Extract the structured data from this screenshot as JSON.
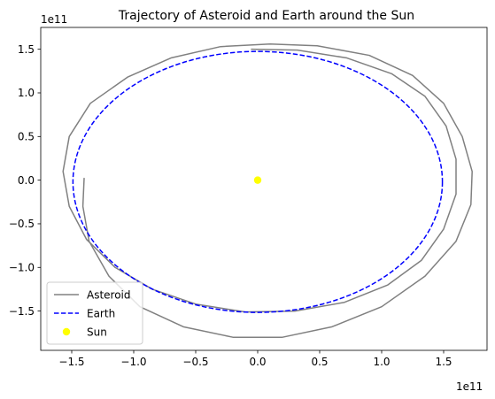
{
  "chart_data": {
    "type": "line",
    "title": "Trajectory of Asteroid and Earth around the Sun",
    "xlabel": "",
    "ylabel": "",
    "x_offset_text": "1e11",
    "y_offset_text": "1e11",
    "xlim": [
      -1.75,
      1.85
    ],
    "ylim": [
      -1.95,
      1.75
    ],
    "xticks": [
      -1.5,
      -1.0,
      -0.5,
      0.0,
      0.5,
      1.0,
      1.5
    ],
    "xtick_labels": [
      "−1.5",
      "−1.0",
      "−0.5",
      "0.0",
      "0.5",
      "1.0",
      "1.5"
    ],
    "yticks": [
      -1.5,
      -1.0,
      -0.5,
      0.0,
      0.5,
      1.0,
      1.5
    ],
    "ytick_labels": [
      "−1.5",
      "−1.0",
      "−0.5",
      "0.0",
      "0.5",
      "1.0",
      "1.5"
    ],
    "grid": false,
    "legend_position": "lower-left",
    "series": [
      {
        "name": "Asteroid",
        "color": "#808080",
        "style": "solid",
        "points": [
          [
            -1.4,
            0.02
          ],
          [
            -1.41,
            -0.3
          ],
          [
            -1.36,
            -0.7
          ],
          [
            -1.2,
            -1.1
          ],
          [
            -0.95,
            -1.45
          ],
          [
            -0.6,
            -1.68
          ],
          [
            -0.2,
            -1.8
          ],
          [
            0.2,
            -1.8
          ],
          [
            0.6,
            -1.68
          ],
          [
            1.0,
            -1.45
          ],
          [
            1.35,
            -1.1
          ],
          [
            1.6,
            -0.7
          ],
          [
            1.72,
            -0.28
          ],
          [
            1.73,
            0.1
          ],
          [
            1.65,
            0.5
          ],
          [
            1.5,
            0.88
          ],
          [
            1.25,
            1.2
          ],
          [
            0.9,
            1.43
          ],
          [
            0.48,
            1.54
          ],
          [
            0.1,
            1.56
          ],
          [
            -0.3,
            1.53
          ],
          [
            -0.7,
            1.4
          ],
          [
            -1.05,
            1.18
          ],
          [
            -1.35,
            0.88
          ],
          [
            -1.52,
            0.5
          ],
          [
            -1.57,
            0.1
          ],
          [
            -1.52,
            -0.3
          ],
          [
            -1.38,
            -0.68
          ],
          [
            -1.15,
            -1.0
          ],
          [
            -0.85,
            -1.25
          ],
          [
            -0.5,
            -1.42
          ],
          [
            -0.1,
            -1.51
          ],
          [
            0.3,
            -1.5
          ],
          [
            0.7,
            -1.4
          ],
          [
            1.05,
            -1.2
          ],
          [
            1.32,
            -0.92
          ],
          [
            1.5,
            -0.56
          ],
          [
            1.6,
            -0.16
          ],
          [
            1.6,
            0.24
          ],
          [
            1.52,
            0.62
          ],
          [
            1.35,
            0.96
          ],
          [
            1.08,
            1.22
          ],
          [
            0.72,
            1.4
          ],
          [
            0.32,
            1.49
          ],
          [
            -0.05,
            1.5
          ]
        ]
      },
      {
        "name": "Earth",
        "color": "#0000ff",
        "style": "dashed",
        "ellipse": {
          "cx": 0.0,
          "cy": -0.02,
          "rx": 1.49,
          "ry": 1.495
        }
      },
      {
        "name": "Sun",
        "color": "#ffff00",
        "style": "marker",
        "points": [
          [
            0.0,
            0.0
          ]
        ]
      }
    ]
  }
}
